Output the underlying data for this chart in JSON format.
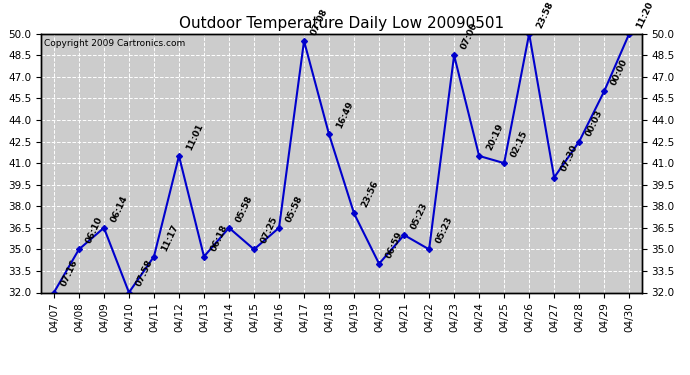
{
  "title": "Outdoor Temperature Daily Low 20090501",
  "copyright": "Copyright 2009 Cartronics.com",
  "x_labels": [
    "04/07",
    "04/08",
    "04/09",
    "04/10",
    "04/11",
    "04/12",
    "04/13",
    "04/14",
    "04/15",
    "04/16",
    "04/17",
    "04/18",
    "04/19",
    "04/20",
    "04/21",
    "04/22",
    "04/23",
    "04/24",
    "04/25",
    "04/26",
    "04/27",
    "04/28",
    "04/29",
    "04/30"
  ],
  "y_values": [
    32.0,
    35.0,
    36.5,
    32.0,
    34.5,
    41.5,
    34.5,
    36.5,
    35.0,
    36.5,
    49.5,
    43.0,
    37.5,
    34.0,
    36.0,
    35.0,
    48.5,
    41.5,
    41.0,
    50.0,
    40.0,
    42.5,
    46.0,
    50.0
  ],
  "point_labels": [
    "07:16",
    "06:10",
    "06:14",
    "07:58",
    "11:17",
    "11:01",
    "06:18",
    "05:58",
    "07:25",
    "05:58",
    "07:08",
    "16:49",
    "23:56",
    "06:59",
    "05:23",
    "05:23",
    "07:00",
    "20:19",
    "02:15",
    "23:58",
    "07:30",
    "00:03",
    "00:00",
    "11:20"
  ],
  "ylim_min": 32.0,
  "ylim_max": 50.0,
  "line_color": "#0000CC",
  "marker_color": "#0000CC",
  "bg_color": "#FFFFFF",
  "plot_bg_color": "#CCCCCC",
  "grid_color": "#FFFFFF",
  "title_fontsize": 11,
  "label_fontsize": 6.5,
  "tick_fontsize": 7.5,
  "yticks": [
    32.0,
    33.5,
    35.0,
    36.5,
    38.0,
    39.5,
    41.0,
    42.5,
    44.0,
    45.5,
    47.0,
    48.5,
    50.0
  ]
}
